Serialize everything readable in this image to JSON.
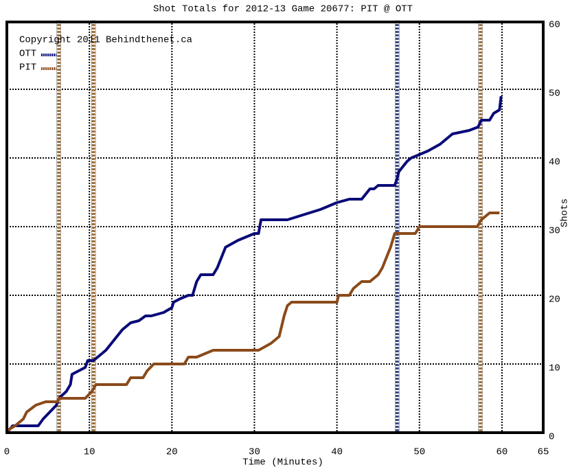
{
  "chart_data": {
    "type": "line",
    "title": "Shot Totals for 2012-13 Game 20677: PIT @ OTT",
    "annotation": "Copyright 2011 Behindthenet.ca",
    "x_label": "Time (Minutes)",
    "y_label": "Shots",
    "xlim": [
      0,
      65
    ],
    "xticks": [
      0,
      10,
      20,
      30,
      40,
      50,
      60,
      65
    ],
    "ylim": [
      0,
      60
    ],
    "yticks": [
      0,
      10,
      20,
      30,
      40,
      50,
      60
    ],
    "grid": true,
    "legend": "top-left",
    "series": [
      {
        "name": "OTT",
        "color": "#0a0a78",
        "x": [
          0,
          0.7,
          3.8,
          4.4,
          6,
          6.3,
          7.2,
          7.7,
          7.9,
          9.5,
          9.8,
          10.5,
          11,
          12,
          13,
          14,
          15,
          16,
          16.8,
          17.5,
          19,
          20,
          20.2,
          21,
          22,
          22.5,
          23,
          23.5,
          25,
          25.5,
          26,
          26.5,
          28,
          30,
          30.5,
          30.8,
          34,
          38,
          40,
          41.5,
          43,
          44,
          44.5,
          45,
          47,
          47.3,
          47.5,
          48.5,
          49,
          50,
          51,
          52.5,
          53,
          54,
          56,
          57.1,
          57.5,
          58.5,
          59,
          59.7,
          59.9
        ],
        "values": [
          0,
          1,
          1,
          2,
          4,
          5,
          6,
          7,
          8.5,
          9.5,
          10.5,
          10.5,
          11,
          12,
          13.5,
          15,
          16,
          16.3,
          17,
          17,
          17.5,
          18.2,
          19,
          19.5,
          20,
          20,
          22,
          23,
          23,
          24,
          25.5,
          27,
          28,
          29,
          29,
          31,
          31,
          32.5,
          33.5,
          34,
          34,
          35.5,
          35.5,
          36,
          36,
          37,
          38,
          39.5,
          40,
          40.5,
          41,
          42,
          42.5,
          43.5,
          44,
          44.5,
          45.5,
          45.5,
          46.5,
          47,
          49
        ]
      },
      {
        "name": "PIT",
        "color": "#8b4a1a",
        "x": [
          0,
          0.3,
          1,
          2,
          2.4,
          3.5,
          4.7,
          6.1,
          6.3,
          9.5,
          10.3,
          10.8,
          14.5,
          15,
          16.5,
          17,
          17.8,
          21.5,
          22,
          23,
          24,
          25,
          30.5,
          32,
          33,
          33.6,
          34,
          34.5,
          40,
          40.2,
          41.5,
          42,
          43,
          44,
          45,
          45.5,
          46,
          46.5,
          47,
          49.5,
          50,
          57,
          57.5,
          58.5,
          59.7
        ],
        "values": [
          0,
          0.5,
          1,
          2,
          3,
          4,
          4.5,
          4.5,
          5,
          5,
          6,
          7,
          7,
          8,
          8,
          9,
          10,
          10,
          11,
          11,
          11.5,
          12,
          12,
          13,
          14,
          17,
          18.5,
          19,
          19,
          20,
          20,
          21,
          22,
          22,
          23,
          24,
          25.5,
          27,
          29,
          29,
          30,
          30,
          31,
          32,
          32
        ]
      }
    ],
    "goal_markers": [
      {
        "x": 6.3,
        "color": "#a0703a"
      },
      {
        "x": 10.5,
        "color": "#a0703a"
      },
      {
        "x": 47.3,
        "color": "#3a4a80"
      },
      {
        "x": 57.4,
        "color": "#a0703a"
      }
    ]
  }
}
